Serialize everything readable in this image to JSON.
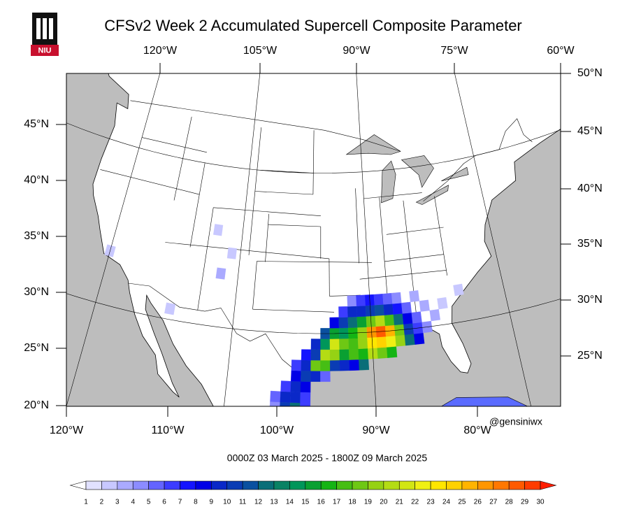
{
  "title": "CFSv2 Week 2 Accumulated Supercell Composite Parameter",
  "logo": "NIU",
  "axes": {
    "top": [
      "120°W",
      "105°W",
      "90°W",
      "75°W",
      "60°W"
    ],
    "right": [
      "50°N",
      "45°N",
      "40°N",
      "35°N",
      "30°N",
      "25°N"
    ],
    "left": [
      "45°N",
      "40°N",
      "35°N",
      "30°N",
      "25°N",
      "20°N"
    ],
    "bottom": [
      "120°W",
      "110°W",
      "100°W",
      "90°W",
      "80°W"
    ]
  },
  "credit": "@gensiniwx",
  "valid_time": "0000Z 03  March  2025  - 1800Z 09  March  2025",
  "colorbar": {
    "ticks": [
      1,
      2,
      3,
      4,
      5,
      6,
      7,
      8,
      9,
      10,
      11,
      12,
      13,
      14,
      15,
      16,
      17,
      18,
      19,
      20,
      21,
      22,
      23,
      24,
      25,
      26,
      27,
      28,
      29,
      30
    ],
    "colors": [
      "#ffffff",
      "#e1e1ff",
      "#c8c8ff",
      "#aaaaff",
      "#8c8cff",
      "#6464ff",
      "#3c3cff",
      "#1414ff",
      "#0000e6",
      "#0a28c8",
      "#0a3cb4",
      "#0a50a0",
      "#0a6e78",
      "#0a8264",
      "#00965a",
      "#0aa032",
      "#14b414",
      "#46be14",
      "#6ec814",
      "#96d214",
      "#b4dc14",
      "#d2e614",
      "#f0f014",
      "#ffe600",
      "#ffd200",
      "#ffb400",
      "#ff9600",
      "#ff7800",
      "#ff5a00",
      "#ff3c00",
      "#ff1e00"
    ]
  },
  "cells": [
    {
      "lon": -99,
      "lat": 21,
      "value": 8
    },
    {
      "lon": -98,
      "lat": 21,
      "value": 12
    },
    {
      "lon": -100,
      "lat": 22,
      "value": 5
    },
    {
      "lon": -99,
      "lat": 22,
      "value": 9
    },
    {
      "lon": -98,
      "lat": 22,
      "value": 14
    },
    {
      "lon": -100,
      "lat": 23,
      "value": 4
    },
    {
      "lon": -99,
      "lat": 23,
      "value": 10
    },
    {
      "lon": -98,
      "lat": 23,
      "value": 12
    },
    {
      "lon": -97,
      "lat": 23,
      "value": 6
    },
    {
      "lon": -100,
      "lat": 24,
      "value": 5
    },
    {
      "lon": -99,
      "lat": 24,
      "value": 9
    },
    {
      "lon": -98,
      "lat": 24,
      "value": 9
    },
    {
      "lon": -97,
      "lat": 24,
      "value": 6
    },
    {
      "lon": -99,
      "lat": 25,
      "value": 6
    },
    {
      "lon": -98,
      "lat": 25,
      "value": 9
    },
    {
      "lon": -97,
      "lat": 25,
      "value": 8
    },
    {
      "lon": -98,
      "lat": 26,
      "value": 8
    },
    {
      "lon": -97,
      "lat": 26,
      "value": 10
    },
    {
      "lon": -96,
      "lat": 26,
      "value": 9
    },
    {
      "lon": -95,
      "lat": 26,
      "value": 5
    },
    {
      "lon": -98,
      "lat": 27,
      "value": 6
    },
    {
      "lon": -97,
      "lat": 27,
      "value": 9
    },
    {
      "lon": -96,
      "lat": 27,
      "value": 18
    },
    {
      "lon": -95,
      "lat": 27,
      "value": 17
    },
    {
      "lon": -94,
      "lat": 27,
      "value": 10
    },
    {
      "lon": -93,
      "lat": 27,
      "value": 9
    },
    {
      "lon": -92,
      "lat": 27,
      "value": 8
    },
    {
      "lon": -91,
      "lat": 27,
      "value": 12
    },
    {
      "lon": -97,
      "lat": 28,
      "value": 7
    },
    {
      "lon": -96,
      "lat": 28,
      "value": 10
    },
    {
      "lon": -95,
      "lat": 28,
      "value": 20
    },
    {
      "lon": -94,
      "lat": 28,
      "value": 19
    },
    {
      "lon": -93,
      "lat": 28,
      "value": 15
    },
    {
      "lon": -92,
      "lat": 28,
      "value": 17
    },
    {
      "lon": -91,
      "lat": 28,
      "value": 16
    },
    {
      "lon": -90,
      "lat": 28,
      "value": 20
    },
    {
      "lon": -89,
      "lat": 28,
      "value": 18
    },
    {
      "lon": -88,
      "lat": 28,
      "value": 16
    },
    {
      "lon": -96,
      "lat": 29,
      "value": 9
    },
    {
      "lon": -95,
      "lat": 29,
      "value": 14
    },
    {
      "lon": -94,
      "lat": 29,
      "value": 21
    },
    {
      "lon": -93,
      "lat": 29,
      "value": 18
    },
    {
      "lon": -92,
      "lat": 29,
      "value": 17
    },
    {
      "lon": -91,
      "lat": 29,
      "value": 19
    },
    {
      "lon": -90,
      "lat": 29,
      "value": 23
    },
    {
      "lon": -89,
      "lat": 29,
      "value": 24
    },
    {
      "lon": -88,
      "lat": 29,
      "value": 22
    },
    {
      "lon": -87,
      "lat": 29,
      "value": 19
    },
    {
      "lon": -86,
      "lat": 29,
      "value": 12
    },
    {
      "lon": -85,
      "lat": 29,
      "value": 8
    },
    {
      "lon": -95,
      "lat": 30,
      "value": 11
    },
    {
      "lon": -94,
      "lat": 30,
      "value": 15
    },
    {
      "lon": -93,
      "lat": 30,
      "value": 14
    },
    {
      "lon": -92,
      "lat": 30,
      "value": 16
    },
    {
      "lon": -91,
      "lat": 30,
      "value": 19
    },
    {
      "lon": -90,
      "lat": 30,
      "value": 26
    },
    {
      "lon": -89,
      "lat": 30,
      "value": 28
    },
    {
      "lon": -88,
      "lat": 30,
      "value": 25
    },
    {
      "lon": -87,
      "lat": 30,
      "value": 18
    },
    {
      "lon": -86,
      "lat": 30,
      "value": 10
    },
    {
      "lon": -85,
      "lat": 30,
      "value": 6
    },
    {
      "lon": -84,
      "lat": 30,
      "value": 4
    },
    {
      "lon": -94,
      "lat": 31,
      "value": 8
    },
    {
      "lon": -93,
      "lat": 31,
      "value": 10
    },
    {
      "lon": -92,
      "lat": 31,
      "value": 12
    },
    {
      "lon": -91,
      "lat": 31,
      "value": 15
    },
    {
      "lon": -90,
      "lat": 31,
      "value": 18
    },
    {
      "lon": -89,
      "lat": 31,
      "value": 20
    },
    {
      "lon": -88,
      "lat": 31,
      "value": 17
    },
    {
      "lon": -87,
      "lat": 31,
      "value": 12
    },
    {
      "lon": -86,
      "lat": 31,
      "value": 8
    },
    {
      "lon": -85,
      "lat": 31,
      "value": 5
    },
    {
      "lon": -83,
      "lat": 31,
      "value": 3
    },
    {
      "lon": -93,
      "lat": 32,
      "value": 6
    },
    {
      "lon": -92,
      "lat": 32,
      "value": 9
    },
    {
      "lon": -91,
      "lat": 32,
      "value": 9
    },
    {
      "lon": -90,
      "lat": 32,
      "value": 10
    },
    {
      "lon": -89,
      "lat": 32,
      "value": 11
    },
    {
      "lon": -88,
      "lat": 32,
      "value": 9
    },
    {
      "lon": -87,
      "lat": 32,
      "value": 7
    },
    {
      "lon": -86,
      "lat": 32,
      "value": 5
    },
    {
      "lon": -84,
      "lat": 32,
      "value": 3
    },
    {
      "lon": -82,
      "lat": 32,
      "value": 2
    },
    {
      "lon": -92,
      "lat": 33,
      "value": 4
    },
    {
      "lon": -91,
      "lat": 33,
      "value": 6
    },
    {
      "lon": -90,
      "lat": 33,
      "value": 7
    },
    {
      "lon": -89,
      "lat": 33,
      "value": 6
    },
    {
      "lon": -88,
      "lat": 33,
      "value": 5
    },
    {
      "lon": -87,
      "lat": 33,
      "value": 4
    },
    {
      "lon": -85,
      "lat": 33,
      "value": 3
    },
    {
      "lon": -80,
      "lat": 33,
      "value": 2
    },
    {
      "lon": -107,
      "lat": 35,
      "value": 3
    },
    {
      "lon": -106,
      "lat": 37,
      "value": 2
    },
    {
      "lon": -108,
      "lat": 39,
      "value": 2
    },
    {
      "lon": -112,
      "lat": 31,
      "value": 2
    },
    {
      "lon": -120,
      "lat": 35,
      "value": 2
    }
  ]
}
